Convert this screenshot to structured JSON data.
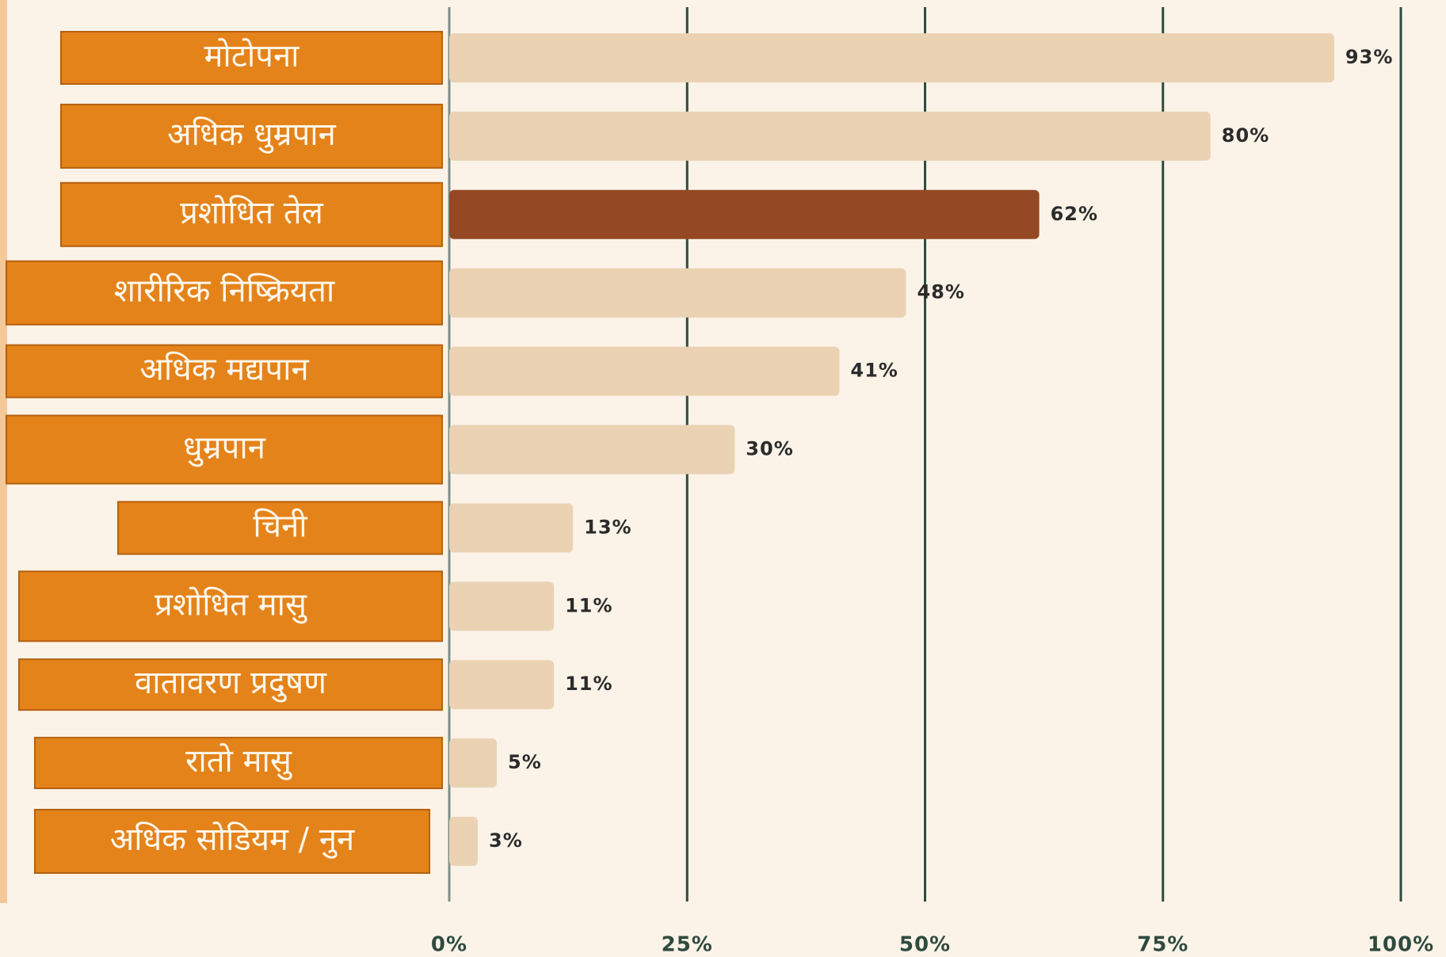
{
  "chart_data": {
    "type": "barh",
    "categories": [
      "मोटोपना",
      "अधिक धुम्रपान",
      "प्रशोधित तेल",
      "शारीरिक निष्क्रियता",
      "अधिक मद्यपान",
      "धुम्रपान",
      "चिनी",
      "प्रशोधित मासु",
      "वातावरण प्रदुषण",
      "रातो मासु",
      "अधिक सोडियम / नुन"
    ],
    "values": [
      93,
      80,
      62,
      48,
      41,
      30,
      13,
      11,
      11,
      5,
      3
    ],
    "value_labels": [
      "93%",
      "80%",
      "62%",
      "48%",
      "41%",
      "30%",
      "13%",
      "11%",
      "11%",
      "5%",
      "3%"
    ],
    "colors": [
      "#ead2b3",
      "#ead2b3",
      "#944823",
      "#ead2b3",
      "#ead2b3",
      "#ead2b3",
      "#ead2b3",
      "#ead2b3",
      "#ead2b3",
      "#ead2b3",
      "#ead2b3"
    ],
    "xlim": [
      0,
      100
    ],
    "xticks": [
      {
        "value": 0,
        "label": "0%"
      },
      {
        "value": 25,
        "label": "25%"
      },
      {
        "value": 50,
        "label": "50%"
      },
      {
        "value": 75,
        "label": "75%"
      },
      {
        "value": 100,
        "label": "100%"
      }
    ],
    "grid": true
  }
}
